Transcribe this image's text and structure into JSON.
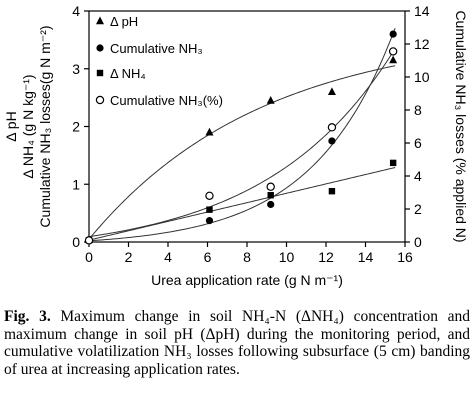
{
  "chart_data": {
    "type": "scatter",
    "xlabel": "Urea application rate (g N m⁻¹)",
    "ylabel_left_lines": [
      "Δ pH",
      "Δ NH₄ (g N kg⁻¹)",
      "Cumulative NH₃ losses(g N m⁻²)"
    ],
    "ylabel_right": "Cumulative NH₃ losses (% applied N)",
    "xlim": [
      0,
      16
    ],
    "ylim_left": [
      0,
      4
    ],
    "ylim_right": [
      0,
      14
    ],
    "x_ticks": [
      "0",
      "2",
      "4",
      "6",
      "8",
      "10",
      "12",
      "14",
      "16"
    ],
    "y_left_ticks": [
      "0",
      "1",
      "2",
      "3",
      "4"
    ],
    "y_right_ticks": [
      "0",
      "2",
      "4",
      "6",
      "8",
      "10",
      "12",
      "14"
    ],
    "legend_position": "top-left",
    "series": [
      {
        "name": "Δ pH",
        "marker": "triangle",
        "axis": "left",
        "x": [
          0,
          6.1,
          9.2,
          12.3,
          15.4
        ],
        "y": [
          0.04,
          1.9,
          2.45,
          2.6,
          3.15
        ],
        "fit": "saturating"
      },
      {
        "name": "Cumulative NH₃",
        "marker": "filled-circle",
        "axis": "left",
        "x": [
          0,
          6.1,
          9.2,
          12.3,
          15.4
        ],
        "y": [
          0.03,
          0.37,
          0.65,
          1.75,
          3.6
        ],
        "fit": "exponential"
      },
      {
        "name": "Δ NH₄",
        "marker": "square",
        "axis": "left",
        "x": [
          0,
          6.1,
          9.2,
          12.3,
          15.4
        ],
        "y": [
          0.03,
          0.56,
          0.81,
          0.88,
          1.37
        ],
        "fit": "linear"
      },
      {
        "name": "Cumulative NH₃(%)",
        "marker": "open-circle",
        "axis": "right",
        "x": [
          0,
          6.1,
          9.2,
          12.3,
          15.4
        ],
        "y": [
          0.1,
          2.8,
          3.35,
          6.95,
          11.55
        ],
        "fit": "exponential"
      }
    ]
  },
  "caption": {
    "label": "Fig. 3.",
    "text": "Maximum change in soil NH₄-N (ΔNH₄) concentration and maximum change in soil pH (ΔpH) during the monitoring period, and cumulative volatilization NH₃ losses following subsurface (5 cm) banding of urea at increasing application rates."
  }
}
